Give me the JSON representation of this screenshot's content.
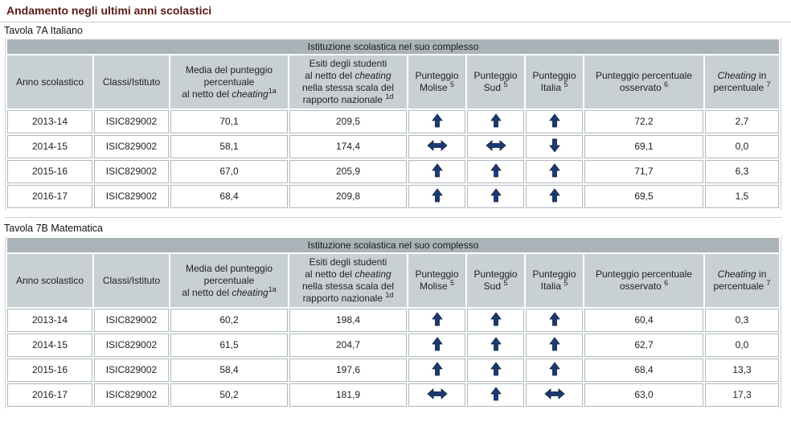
{
  "page": {
    "heading": "Andamento negli ultimi anni scolastici"
  },
  "colors": {
    "heading_text": "#5a1a14",
    "group_header_bg": "#a9b3b8",
    "column_header_bg": "#c8d0d4",
    "cell_border": "#aeb8bd",
    "arrow_fill": "#1c3a70"
  },
  "columns": {
    "anno": "Anno scolastico",
    "classi": "Classi/Istituto",
    "media_1": "Media del punteggio",
    "media_2": "percentuale",
    "media_3": "al netto del ",
    "media_3_italic": "cheating",
    "media_sup": "1a",
    "esiti_1": "Esiti degli studenti",
    "esiti_2": "al netto del ",
    "esiti_2_italic": "cheating",
    "esiti_3": "nella stessa scala del",
    "esiti_4": "rapporto nazionale ",
    "esiti_sup": "1d",
    "molise_1": "Punteggio",
    "molise_2": "Molise ",
    "molise_sup": "5",
    "sud_1": "Punteggio",
    "sud_2": "Sud ",
    "sud_sup": "5",
    "italia_1": "Punteggio",
    "italia_2": "Italia ",
    "italia_sup": "5",
    "osservato_1": "Punteggio percentuale",
    "osservato_2": "osservato ",
    "osservato_sup": "6",
    "cheating_1_italic": "Cheating",
    "cheating_1": " in",
    "cheating_2": "percentuale ",
    "cheating_sup": "7"
  },
  "tables": [
    {
      "title": "Tavola 7A Italiano",
      "group_header": "Istituzione scolastica nel suo complesso",
      "rows": [
        {
          "anno": "2013-14",
          "classi": "ISIC829002",
          "media": "70,1",
          "esiti": "209,5",
          "molise": "up-arrow-icon",
          "sud": "up-arrow-icon",
          "italia": "up-arrow-icon",
          "osservato": "72,2",
          "cheating": "2,7"
        },
        {
          "anno": "2014-15",
          "classi": "ISIC829002",
          "media": "58,1",
          "esiti": "174,4",
          "molise": "left-right-arrow-icon",
          "sud": "left-right-arrow-icon",
          "italia": "down-arrow-icon",
          "osservato": "69,1",
          "cheating": "0,0"
        },
        {
          "anno": "2015-16",
          "classi": "ISIC829002",
          "media": "67,0",
          "esiti": "205,9",
          "molise": "up-arrow-icon",
          "sud": "up-arrow-icon",
          "italia": "up-arrow-icon",
          "osservato": "71,7",
          "cheating": "6,3"
        },
        {
          "anno": "2016-17",
          "classi": "ISIC829002",
          "media": "68,4",
          "esiti": "209,8",
          "molise": "up-arrow-icon",
          "sud": "up-arrow-icon",
          "italia": "up-arrow-icon",
          "osservato": "69,5",
          "cheating": "1,5"
        }
      ]
    },
    {
      "title": "Tavola 7B Matematica",
      "group_header": "Istituzione scolastica nel suo complesso",
      "rows": [
        {
          "anno": "2013-14",
          "classi": "ISIC829002",
          "media": "60,2",
          "esiti": "198,4",
          "molise": "up-arrow-icon",
          "sud": "up-arrow-icon",
          "italia": "up-arrow-icon",
          "osservato": "60,4",
          "cheating": "0,3"
        },
        {
          "anno": "2014-15",
          "classi": "ISIC829002",
          "media": "61,5",
          "esiti": "204,7",
          "molise": "up-arrow-icon",
          "sud": "up-arrow-icon",
          "italia": "up-arrow-icon",
          "osservato": "62,7",
          "cheating": "0,0"
        },
        {
          "anno": "2015-16",
          "classi": "ISIC829002",
          "media": "58,4",
          "esiti": "197,6",
          "molise": "up-arrow-icon",
          "sud": "up-arrow-icon",
          "italia": "up-arrow-icon",
          "osservato": "68,4",
          "cheating": "13,3"
        },
        {
          "anno": "2016-17",
          "classi": "ISIC829002",
          "media": "50,2",
          "esiti": "181,9",
          "molise": "left-right-arrow-icon",
          "sud": "up-arrow-icon",
          "italia": "left-right-arrow-icon",
          "osservato": "63,0",
          "cheating": "17,3"
        }
      ]
    }
  ]
}
